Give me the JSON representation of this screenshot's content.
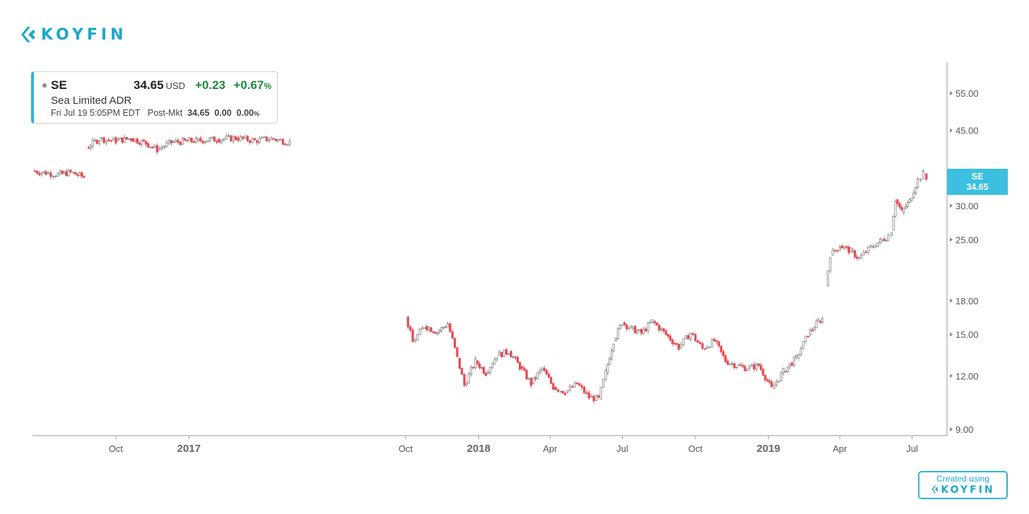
{
  "brand": {
    "name": "KOYFIN",
    "color": "#1fa7c9"
  },
  "quote": {
    "symbol": "SE",
    "price": "34.65",
    "currency": "USD",
    "change": "+0.23",
    "change_pct": "+0.67",
    "pct_sign": "%",
    "name": "Sea Limited ADR",
    "timestamp": "Fri Jul 19 5:05PM EDT",
    "post_label": "Post-Mkt",
    "post_price": "34.65",
    "post_change": "0.00",
    "post_pct": "0.00",
    "post_pct_sign": "%"
  },
  "price_tag": {
    "symbol": "SE",
    "value": "34.65"
  },
  "footer": {
    "created_label": "Created using",
    "brand": "KOYFIN"
  },
  "colors": {
    "up": "#888888",
    "down": "#e8474f",
    "accent": "#3cbfe0",
    "positive": "#1d8a3c"
  },
  "chart_data": {
    "type": "candlestick",
    "scale": "log",
    "ylim": [
      8.7,
      65
    ],
    "y_ticks": [
      55,
      45,
      30,
      25,
      18,
      15,
      12,
      9
    ],
    "y_tick_labels": [
      "55.00",
      "45.00",
      "30.00",
      "25.00",
      "18.00",
      "15.00",
      "12.00",
      "9.00"
    ],
    "x_range": [
      "2016-06-18",
      "2019-08-14"
    ],
    "x_ticks": [
      {
        "date": "2016-10-01",
        "label": "Oct",
        "major": false
      },
      {
        "date": "2017-01-01",
        "label": "2017",
        "major": true
      },
      {
        "date": "2017-10-01",
        "label": "Oct",
        "major": false
      },
      {
        "date": "2018-01-01",
        "label": "2018",
        "major": true
      },
      {
        "date": "2018-04-01",
        "label": "Apr",
        "major": false
      },
      {
        "date": "2018-07-01",
        "label": "Jul",
        "major": false
      },
      {
        "date": "2018-10-01",
        "label": "Oct",
        "major": false
      },
      {
        "date": "2019-01-01",
        "label": "2019",
        "major": true
      },
      {
        "date": "2019-04-01",
        "label": "Apr",
        "major": false
      },
      {
        "date": "2019-07-01",
        "label": "Jul",
        "major": false
      }
    ],
    "series": [
      {
        "points": [
          [
            "2016-06-18",
            36.2
          ],
          [
            "2016-07-05",
            35.8
          ],
          [
            "2016-07-20",
            35.5
          ],
          [
            "2016-08-05",
            35.9
          ],
          [
            "2016-08-22",
            35.0
          ]
        ]
      },
      {
        "points": [
          [
            "2016-08-25",
            41.0
          ],
          [
            "2016-09-10",
            43.0
          ],
          [
            "2016-10-01",
            42.6
          ],
          [
            "2016-10-20",
            43.1
          ],
          [
            "2016-11-08",
            42.0
          ],
          [
            "2016-11-22",
            40.6
          ],
          [
            "2016-12-10",
            42.2
          ],
          [
            "2017-01-10",
            42.6
          ],
          [
            "2017-02-05",
            42.9
          ],
          [
            "2017-03-01",
            43.2
          ],
          [
            "2017-03-25",
            42.6
          ],
          [
            "2017-04-15",
            43.1
          ],
          [
            "2017-05-08",
            42.2
          ]
        ]
      },
      {
        "points": [
          [
            "2017-10-01",
            16.5
          ],
          [
            "2017-10-10",
            14.4
          ],
          [
            "2017-10-25",
            15.7
          ],
          [
            "2017-11-10",
            15.2
          ],
          [
            "2017-11-23",
            15.9
          ],
          [
            "2017-12-05",
            13.2
          ],
          [
            "2017-12-14",
            11.4
          ],
          [
            "2017-12-28",
            13.0
          ],
          [
            "2018-01-10",
            12.2
          ],
          [
            "2018-01-24",
            13.4
          ],
          [
            "2018-02-08",
            13.7
          ],
          [
            "2018-02-22",
            12.6
          ],
          [
            "2018-03-08",
            11.5
          ],
          [
            "2018-03-22",
            12.5
          ],
          [
            "2018-04-05",
            11.3
          ],
          [
            "2018-04-20",
            11.0
          ],
          [
            "2018-05-05",
            11.5
          ],
          [
            "2018-05-20",
            10.7
          ],
          [
            "2018-06-01",
            10.6
          ],
          [
            "2018-06-10",
            12.2
          ],
          [
            "2018-06-20",
            14.5
          ],
          [
            "2018-07-01",
            16.0
          ],
          [
            "2018-07-12",
            15.5
          ],
          [
            "2018-07-25",
            15.1
          ],
          [
            "2018-08-08",
            16.1
          ],
          [
            "2018-08-25",
            15.0
          ],
          [
            "2018-09-10",
            14.0
          ],
          [
            "2018-09-25",
            15.1
          ],
          [
            "2018-10-10",
            13.9
          ],
          [
            "2018-10-25",
            14.5
          ],
          [
            "2018-11-08",
            13.0
          ],
          [
            "2018-11-22",
            12.7
          ],
          [
            "2018-12-05",
            12.5
          ],
          [
            "2018-12-20",
            12.7
          ],
          [
            "2019-01-05",
            11.2
          ],
          [
            "2019-01-20",
            12.3
          ],
          [
            "2019-02-05",
            13.2
          ],
          [
            "2019-02-20",
            15.0
          ],
          [
            "2019-03-05",
            16.1
          ],
          [
            "2019-03-10",
            16.3
          ]
        ]
      },
      {
        "points": [
          [
            "2019-03-14",
            19.5
          ],
          [
            "2019-03-20",
            23.0
          ],
          [
            "2019-04-01",
            24.2
          ],
          [
            "2019-04-15",
            23.5
          ],
          [
            "2019-04-25",
            22.6
          ],
          [
            "2019-05-10",
            24.0
          ],
          [
            "2019-05-22",
            24.8
          ],
          [
            "2019-06-01",
            25.5
          ],
          [
            "2019-06-05",
            26.3
          ],
          [
            "2019-06-10",
            31.0
          ],
          [
            "2019-06-18",
            29.0
          ],
          [
            "2019-06-28",
            30.8
          ],
          [
            "2019-07-08",
            34.5
          ],
          [
            "2019-07-15",
            35.6
          ],
          [
            "2019-07-19",
            34.65
          ]
        ]
      }
    ]
  }
}
